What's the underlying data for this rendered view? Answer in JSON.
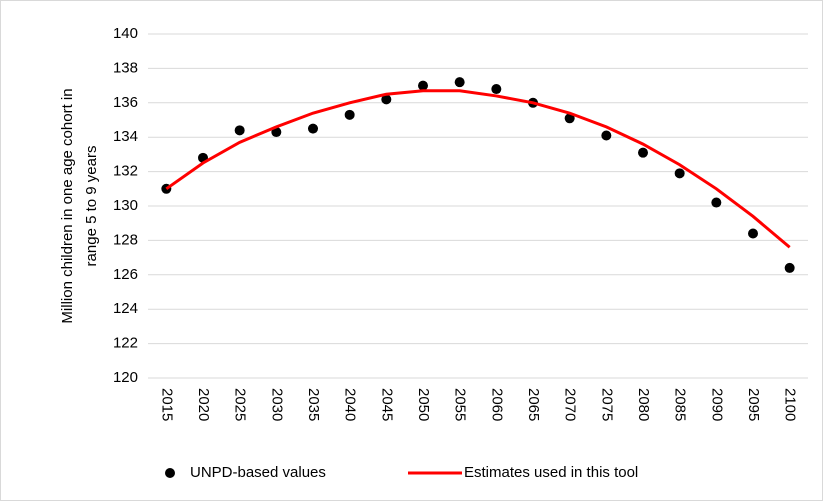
{
  "chart_data": {
    "type": "combo",
    "ylabel": [
      "Million children in one age cohort in",
      "range 5 to 9 years"
    ],
    "categories": [
      "2015",
      "2020",
      "2025",
      "2030",
      "2035",
      "2040",
      "2045",
      "2050",
      "2055",
      "2060",
      "2065",
      "2070",
      "2075",
      "2080",
      "2085",
      "2090",
      "2095",
      "2100"
    ],
    "series": [
      {
        "name": "UNPD-based values",
        "type": "scatter",
        "color": "#000000",
        "values": [
          131.0,
          132.8,
          134.4,
          134.3,
          134.5,
          135.3,
          136.2,
          137.0,
          137.2,
          136.8,
          136.0,
          135.1,
          134.1,
          133.1,
          131.9,
          130.2,
          128.4,
          126.4
        ]
      },
      {
        "name": "Estimates used in this tool",
        "type": "line",
        "color": "#ff0000",
        "values": [
          131.0,
          132.5,
          133.7,
          134.6,
          135.4,
          136.0,
          136.5,
          136.7,
          136.7,
          136.4,
          136.0,
          135.4,
          134.6,
          133.6,
          132.4,
          131.0,
          129.4,
          127.6
        ]
      }
    ],
    "ylim": [
      120,
      140
    ],
    "yticks": [
      120,
      122,
      124,
      126,
      128,
      130,
      132,
      134,
      136,
      138,
      140
    ],
    "grid": true,
    "legend": "bottom"
  }
}
